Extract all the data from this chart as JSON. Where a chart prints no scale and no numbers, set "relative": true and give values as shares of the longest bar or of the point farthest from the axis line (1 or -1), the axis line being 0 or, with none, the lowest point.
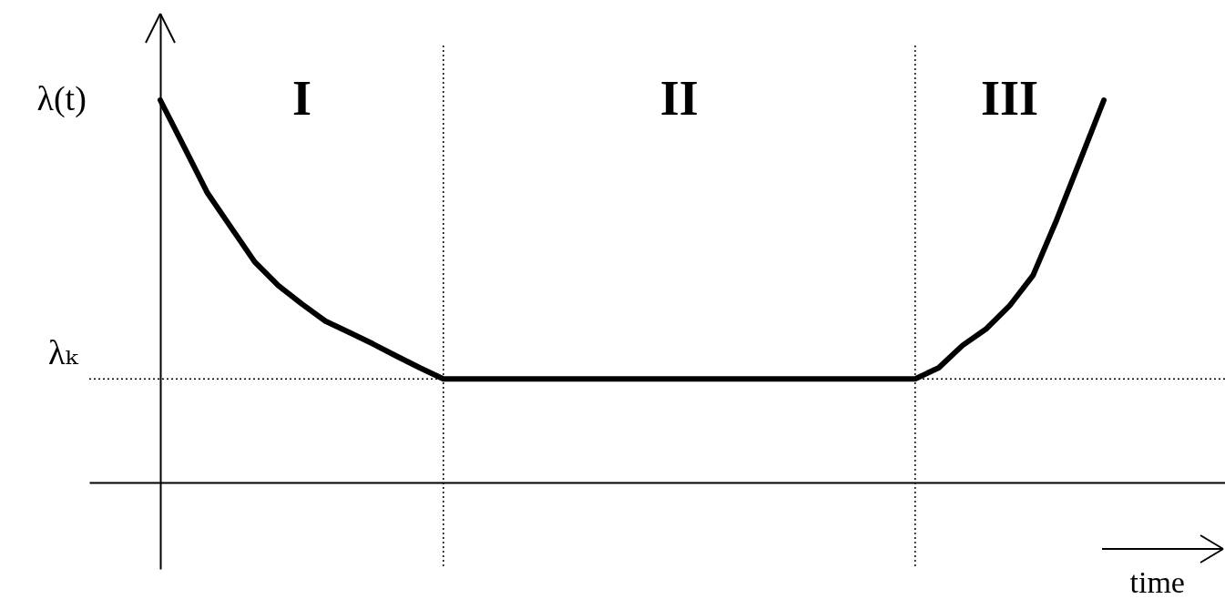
{
  "chart_data": {
    "type": "line",
    "relative": true,
    "ylabel": "λ(t)",
    "xlabel": "time",
    "categories": [
      null,
      null,
      null,
      null,
      null,
      null,
      null,
      null,
      null,
      null,
      null,
      null,
      null,
      null,
      null,
      null,
      null,
      null,
      null,
      null,
      null,
      null,
      null,
      null,
      null,
      null,
      null,
      null,
      null,
      null,
      null,
      null,
      null,
      null,
      null,
      null,
      null,
      null,
      null,
      null,
      null
    ],
    "series": [
      {
        "color": "#000000",
        "values": [
          1,
          0.879,
          0.757,
          0.667,
          0.577,
          0.515,
          0.467,
          0.422,
          0.393,
          0.363,
          0.331,
          0.3,
          0.271,
          0.271,
          0.271,
          0.271,
          0.271,
          0.271,
          0.271,
          0.271,
          0.271,
          0.271,
          0.271,
          0.271,
          0.271,
          0.271,
          0.271,
          0.271,
          0.271,
          0.271,
          0.271,
          0.271,
          0.271,
          0.3,
          0.358,
          0.401,
          0.462,
          0.542,
          0.687,
          0.843,
          1
        ]
      }
    ],
    "ref_lines": [
      {
        "axis": "y",
        "value": 0.271,
        "label": "λₖ",
        "line_style": "dotted"
      }
    ],
    "annotations": [
      "I",
      "II",
      "III"
    ]
  }
}
